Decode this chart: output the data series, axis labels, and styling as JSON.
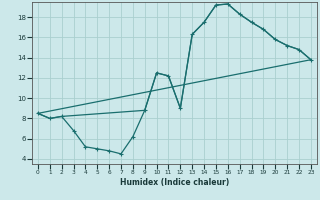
{
  "xlabel": "Humidex (Indice chaleur)",
  "bg_color": "#cce8ea",
  "line_color": "#1a6e6e",
  "grid_color": "#aacfcf",
  "xlim": [
    -0.5,
    23.5
  ],
  "ylim": [
    3.5,
    19.5
  ],
  "yticks": [
    4,
    6,
    8,
    10,
    12,
    14,
    16,
    18
  ],
  "xticks": [
    0,
    1,
    2,
    3,
    4,
    5,
    6,
    7,
    8,
    9,
    10,
    11,
    12,
    13,
    14,
    15,
    16,
    17,
    18,
    19,
    20,
    21,
    22,
    23
  ],
  "line1_x": [
    0,
    1,
    2,
    3,
    4,
    5,
    6,
    7,
    8,
    9,
    10,
    11,
    12,
    13,
    14,
    15,
    16,
    17,
    18,
    19,
    20,
    21,
    22,
    23
  ],
  "line1_y": [
    8.5,
    8.0,
    8.2,
    6.8,
    5.2,
    5.0,
    4.8,
    4.5,
    6.2,
    8.8,
    12.5,
    12.2,
    9.0,
    16.3,
    17.5,
    19.2,
    19.3,
    18.3,
    17.5,
    16.8,
    15.8,
    15.2,
    14.8,
    13.8
  ],
  "line2_x": [
    0,
    1,
    2,
    9,
    10,
    11,
    12,
    13,
    14,
    15,
    16,
    17,
    18,
    19,
    20,
    21,
    22,
    23
  ],
  "line2_y": [
    8.5,
    8.0,
    8.2,
    8.8,
    12.5,
    12.2,
    9.0,
    16.3,
    17.5,
    19.2,
    19.3,
    18.3,
    17.5,
    16.8,
    15.8,
    15.2,
    14.8,
    13.8
  ],
  "line3_x": [
    0,
    23
  ],
  "line3_y": [
    8.5,
    13.8
  ]
}
